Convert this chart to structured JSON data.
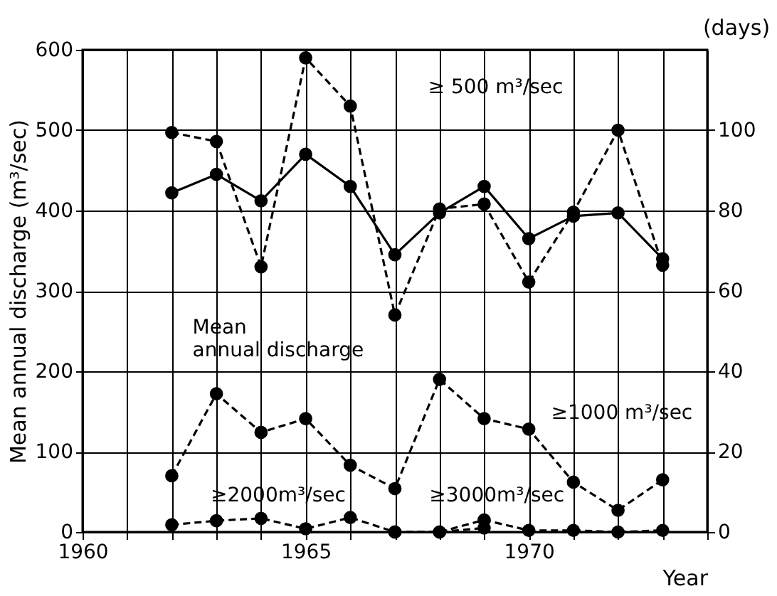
{
  "chart_data": {
    "type": "line",
    "xlabel": "Year",
    "ylabel": "Mean annual discharge (m³/sec)",
    "y2label": "(days)",
    "xlim": [
      1960,
      1974
    ],
    "xticks": [
      1960,
      {
        "value": 1961,
        "label": null
      },
      {
        "value": 1962,
        "label": null
      },
      {
        "value": 1963,
        "label": null
      },
      {
        "value": 1964,
        "label": null
      },
      1965,
      {
        "value": 1966,
        "label": null
      },
      {
        "value": 1967,
        "label": null
      },
      {
        "value": 1968,
        "label": null
      },
      {
        "value": 1969,
        "label": null
      },
      1970,
      {
        "value": 1971,
        "label": null
      },
      {
        "value": 1972,
        "label": null
      },
      {
        "value": 1973,
        "label": null
      },
      {
        "value": 1974,
        "label": null
      }
    ],
    "ylim": [
      0,
      600
    ],
    "yticks": [
      0,
      100,
      200,
      300,
      400,
      500,
      600
    ],
    "y2lim": [
      0,
      120
    ],
    "y2ticks": [
      0,
      20,
      40,
      60,
      80,
      100
    ],
    "grid": true,
    "marker": "circle",
    "x": [
      1962,
      1963,
      1964,
      1965,
      1966,
      1967,
      1968,
      1969,
      1970,
      1971,
      1972,
      1973
    ],
    "series": [
      {
        "color": "#000000",
        "line_style": "solid",
        "values": [
          422,
          445,
          412,
          470,
          430,
          345,
          397,
          430,
          365,
          393,
          397,
          340
        ]
      },
      {
        "color": "#000000",
        "line_style": "dashed",
        "axis": "y2",
        "values": [
          99.4,
          97.2,
          66,
          118,
          106,
          54,
          80.4,
          81.6,
          62.2,
          79.6,
          100,
          66.4
        ]
      },
      {
        "color": "#000000",
        "line_style": "dashed",
        "axis": "y2",
        "values": [
          14,
          34.4,
          24.8,
          28.2,
          16.6,
          10.8,
          38,
          28.2,
          25.6,
          12.4,
          5.4,
          13
        ]
      },
      {
        "color": "#000000",
        "line_style": "dashed",
        "axis": "y2",
        "values": [
          1.8,
          2.8,
          3.4,
          0.8,
          3.6,
          0,
          0,
          3,
          0.4,
          0.4,
          0,
          0.4
        ]
      },
      {
        "color": "#000000",
        "line_style": "dashed",
        "axis": "y2",
        "x": [
          1967,
          1968,
          1969
        ],
        "values": [
          0,
          0,
          1
        ]
      }
    ],
    "annotations": [
      "≥ 500 m³/sec",
      "Mean\nannual discharge",
      "≥1000 m³/sec",
      "≥2000m³/sec",
      "≥3000m³/sec"
    ]
  }
}
